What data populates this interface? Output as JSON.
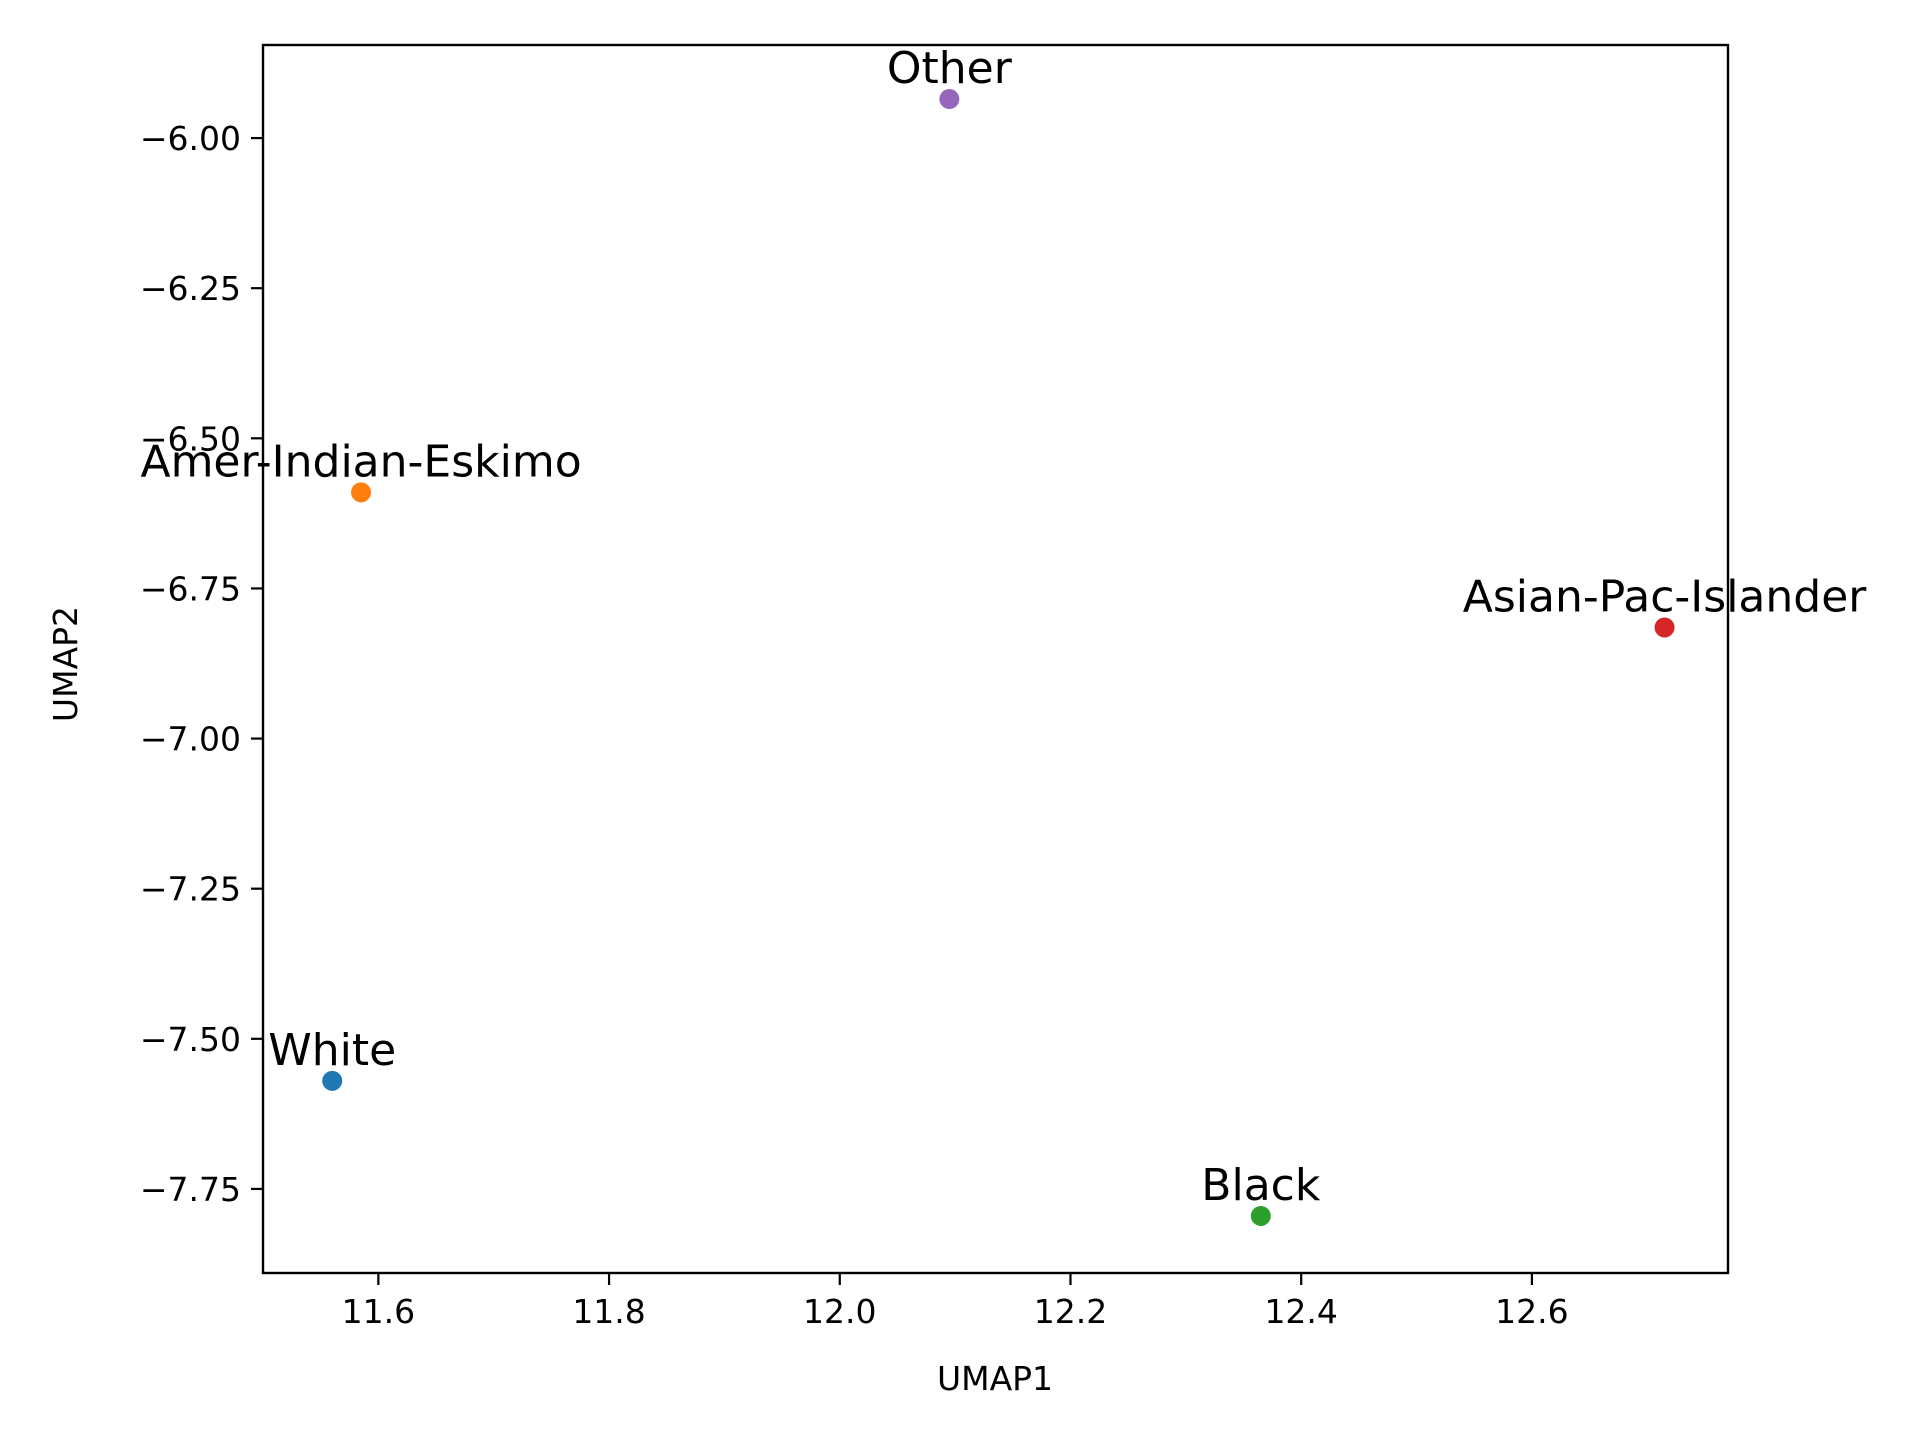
{
  "chart_data": {
    "type": "scatter",
    "title": "",
    "xlabel": "UMAP1",
    "ylabel": "UMAP2",
    "xlim": [
      11.5,
      12.77
    ],
    "ylim": [
      -7.89,
      -5.845
    ],
    "xticks": [
      11.6,
      11.8,
      12.0,
      12.2,
      12.4,
      12.6
    ],
    "xtick_labels": [
      "11.6",
      "11.8",
      "12.0",
      "12.2",
      "12.4",
      "12.6"
    ],
    "yticks": [
      -6.0,
      -6.25,
      -6.5,
      -6.75,
      -7.0,
      -7.25,
      -7.5,
      -7.75
    ],
    "ytick_labels": [
      "−6.00",
      "−6.25",
      "−6.50",
      "−6.75",
      "−7.00",
      "−7.25",
      "−7.50",
      "−7.75"
    ],
    "grid": false,
    "legend": "none",
    "points": [
      {
        "label": "White",
        "x": 11.56,
        "y": -7.57,
        "color": "#1f77b4"
      },
      {
        "label": "Amer-Indian-Eskimo",
        "x": 11.585,
        "y": -6.59,
        "color": "#ff7f0e"
      },
      {
        "label": "Black",
        "x": 12.365,
        "y": -7.795,
        "color": "#2ca02c"
      },
      {
        "label": "Asian-Pac-Islander",
        "x": 12.715,
        "y": -6.815,
        "color": "#d62728"
      },
      {
        "label": "Other",
        "x": 12.095,
        "y": -5.935,
        "color": "#9467bd"
      }
    ]
  }
}
